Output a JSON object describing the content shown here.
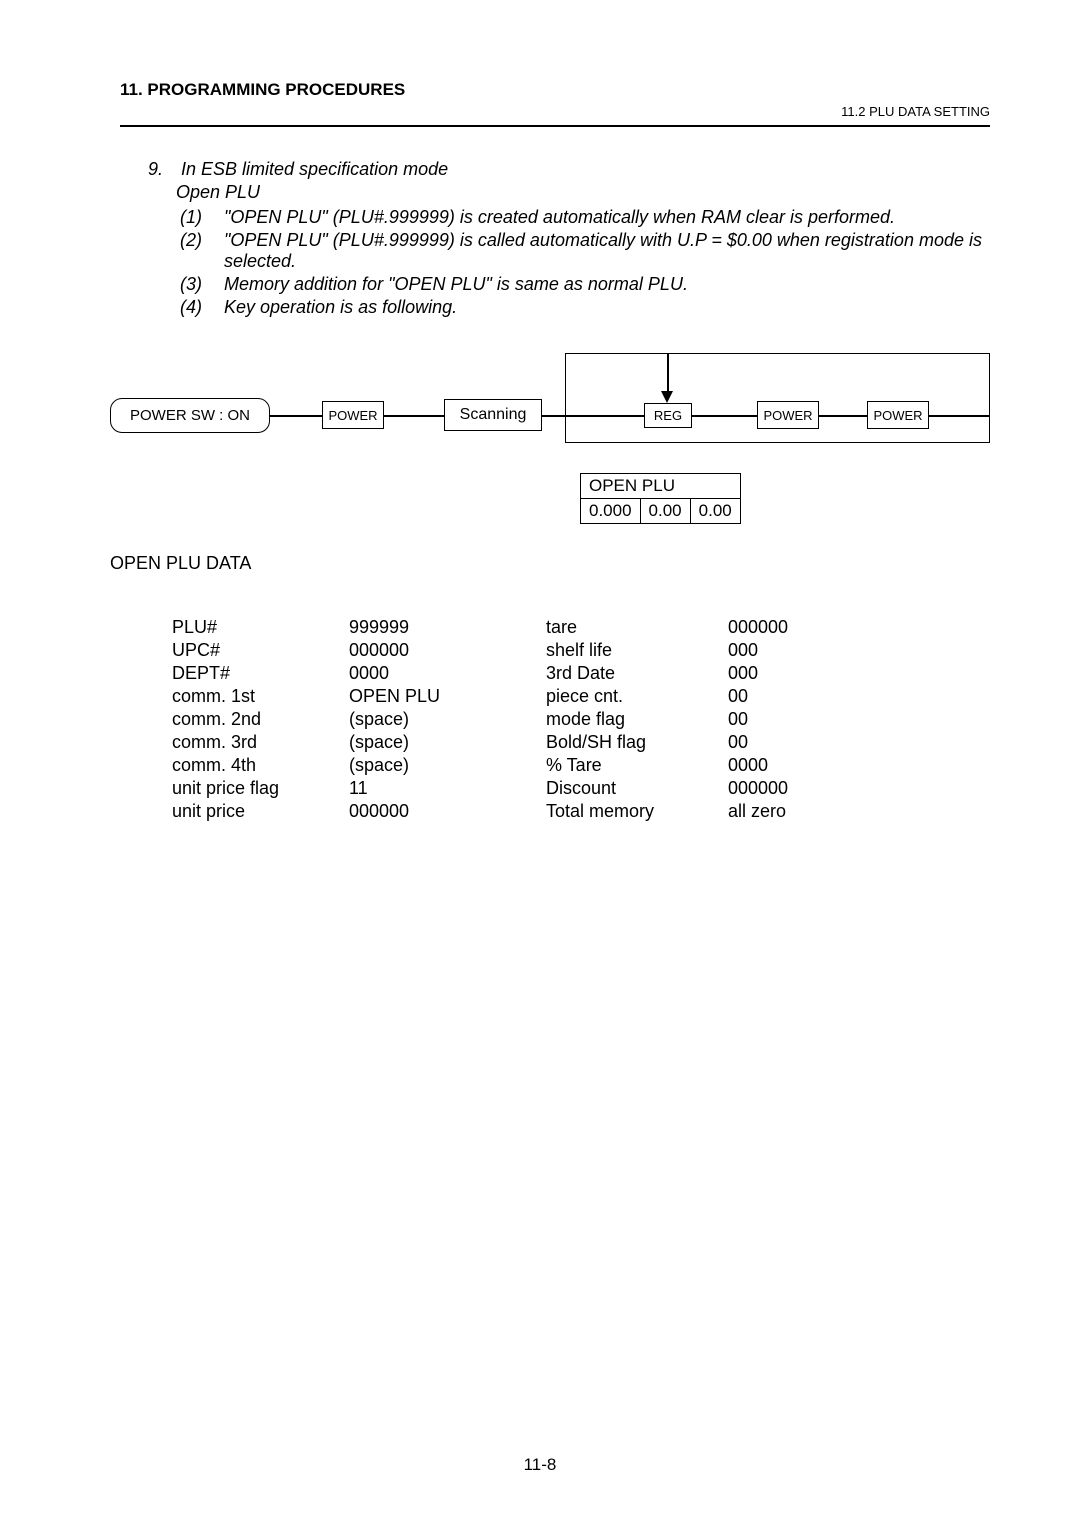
{
  "header": {
    "section_title": "11. PROGRAMMING PROCEDURES",
    "subtitle_right": "11.2 PLU DATA SETTING"
  },
  "item9": {
    "number": "9.",
    "title": "In ESB limited specification mode",
    "subtitle": "Open PLU",
    "subs": [
      {
        "n": "(1)",
        "t": "\"OPEN PLU\" (PLU#.999999) is created automatically when RAM clear is performed."
      },
      {
        "n": "(2)",
        "t": "\"OPEN PLU\" (PLU#.999999) is called automatically with U.P = $0.00 when registration mode is selected."
      },
      {
        "n": "(3)",
        "t": "Memory addition for \"OPEN PLU\" is same as normal PLU."
      },
      {
        "n": "(4)",
        "t": "Key operation is as following."
      }
    ]
  },
  "flow": {
    "n1": "POWER SW : ON",
    "n2": "POWER",
    "n3": "Scanning",
    "n4": "REG",
    "n5": "POWER",
    "n6": "POWER",
    "disp_row1": "OPEN PLU",
    "disp_c1": "0.000",
    "disp_c2": "0.00",
    "disp_c3": "0.00"
  },
  "table": {
    "title": "OPEN PLU DATA",
    "rows": [
      [
        "PLU#",
        "999999",
        "tare",
        "000000"
      ],
      [
        "UPC#",
        "000000",
        "shelf life",
        "000"
      ],
      [
        "DEPT#",
        "0000",
        "3rd Date",
        "000"
      ],
      [
        "comm. 1st",
        "OPEN PLU",
        "piece cnt.",
        "00"
      ],
      [
        "comm. 2nd",
        "(space)",
        "mode flag",
        "00"
      ],
      [
        "comm. 3rd",
        "(space)",
        "Bold/SH flag",
        "00"
      ],
      [
        "comm. 4th",
        "(space)",
        "% Tare",
        "0000"
      ],
      [
        "unit price flag",
        "11",
        "Discount",
        "000000"
      ],
      [
        "unit price",
        "000000",
        "Total memory",
        "all zero"
      ]
    ]
  },
  "page_number": "11-8"
}
